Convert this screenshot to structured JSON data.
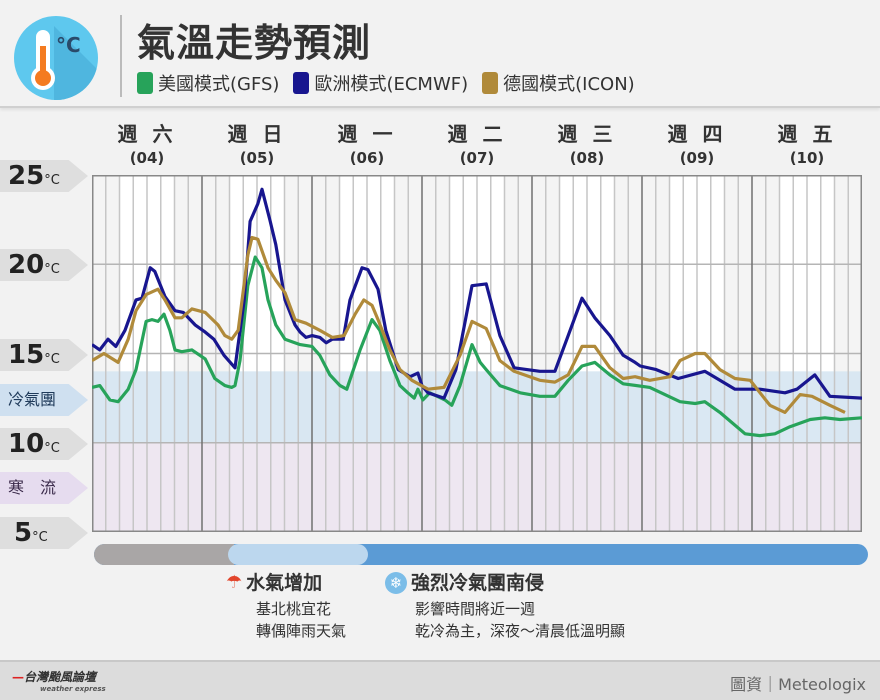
{
  "header": {
    "title": "氣溫走勢預測",
    "icon": "thermometer-celsius-icon"
  },
  "chart_data": {
    "type": "line",
    "title": "氣溫走勢預測",
    "xlabel": "",
    "ylabel": "°C",
    "xlim": [
      0,
      168
    ],
    "ylim": [
      5,
      25
    ],
    "grid": true,
    "legend_position": "top",
    "day_labels": [
      {
        "w": "週 六",
        "d": "(04)"
      },
      {
        "w": "週 日",
        "d": "(05)"
      },
      {
        "w": "週 一",
        "d": "(06)"
      },
      {
        "w": "週 二",
        "d": "(07)"
      },
      {
        "w": "週 三",
        "d": "(08)"
      },
      {
        "w": "週 四",
        "d": "(09)"
      },
      {
        "w": "週 五",
        "d": "(10)"
      }
    ],
    "y_ticks": [
      {
        "v": 25,
        "t": "25"
      },
      {
        "v": 20,
        "t": "20"
      },
      {
        "v": 15,
        "t": "15"
      },
      {
        "v": 10,
        "t": "10"
      },
      {
        "v": 5,
        "t": "5"
      }
    ],
    "unit": "°C",
    "bands": [
      {
        "name": "冷氣團",
        "from": 10,
        "to": 14,
        "color": "#d4e4f1"
      },
      {
        "name": "寒　流",
        "from": 5,
        "to": 10,
        "color": "#ebe3ef"
      }
    ],
    "series": [
      {
        "name": "美國模式(GFS)",
        "color": "#27a35a",
        "points": [
          [
            0,
            13.1
          ],
          [
            1.7,
            13.2
          ],
          [
            3.9,
            12.4
          ],
          [
            5.7,
            12.3
          ],
          [
            7.9,
            13
          ],
          [
            9.6,
            14.1
          ],
          [
            11.8,
            16.8
          ],
          [
            13.1,
            16.9
          ],
          [
            14.4,
            16.8
          ],
          [
            15.7,
            17.2
          ],
          [
            17,
            16.3
          ],
          [
            18.1,
            15.2
          ],
          [
            19.6,
            15.1
          ],
          [
            21.8,
            15.2
          ],
          [
            24.7,
            14.7
          ],
          [
            26.8,
            13.6
          ],
          [
            29,
            13.2
          ],
          [
            30.5,
            13.1
          ],
          [
            31.2,
            13.2
          ],
          [
            32.3,
            14.6
          ],
          [
            34,
            18.8
          ],
          [
            35.6,
            20.4
          ],
          [
            37.1,
            19.8
          ],
          [
            38.4,
            18
          ],
          [
            40.1,
            16.6
          ],
          [
            42.1,
            15.8
          ],
          [
            45.4,
            15.5
          ],
          [
            48,
            15.4
          ],
          [
            49.7,
            14.9
          ],
          [
            51.9,
            13.8
          ],
          [
            54.1,
            13.2
          ],
          [
            55.6,
            13
          ],
          [
            58.5,
            15.2
          ],
          [
            61.1,
            16.9
          ],
          [
            62.8,
            16.3
          ],
          [
            65,
            14.6
          ],
          [
            67.2,
            13.2
          ],
          [
            68.9,
            12.8
          ],
          [
            70.3,
            12.5
          ],
          [
            71.1,
            13
          ],
          [
            72.2,
            12.4
          ],
          [
            73.7,
            12.8
          ],
          [
            77,
            12.4
          ],
          [
            78.5,
            12.1
          ],
          [
            80.3,
            13.2
          ],
          [
            82.9,
            15.5
          ],
          [
            84.7,
            14.5
          ],
          [
            86,
            14.1
          ],
          [
            89,
            13.2
          ],
          [
            93.4,
            12.8
          ],
          [
            97.7,
            12.6
          ],
          [
            101,
            12.6
          ],
          [
            103.9,
            13.5
          ],
          [
            106.9,
            14.3
          ],
          [
            109.7,
            14.5
          ],
          [
            113,
            13.8
          ],
          [
            115.9,
            13.3
          ],
          [
            121.7,
            13.1
          ],
          [
            128.3,
            12.3
          ],
          [
            131.6,
            12.2
          ],
          [
            133.7,
            12.3
          ],
          [
            137,
            11.7
          ],
          [
            142.5,
            10.5
          ],
          [
            145.7,
            10.4
          ],
          [
            149,
            10.5
          ],
          [
            152.3,
            10.9
          ],
          [
            156.7,
            11.3
          ],
          [
            159.9,
            11.4
          ],
          [
            163.2,
            11.3
          ],
          [
            168,
            11.4
          ]
        ]
      },
      {
        "name": "歐洲模式(ECMWF)",
        "color": "#18168f",
        "points": [
          [
            0,
            15.5
          ],
          [
            1.7,
            15.2
          ],
          [
            3.5,
            15.8
          ],
          [
            5.2,
            15.4
          ],
          [
            7.2,
            16.3
          ],
          [
            9.6,
            18
          ],
          [
            10.9,
            18.1
          ],
          [
            12.7,
            19.8
          ],
          [
            13.7,
            19.6
          ],
          [
            15.9,
            18.2
          ],
          [
            18.1,
            17.4
          ],
          [
            19.9,
            17.3
          ],
          [
            22.5,
            16.6
          ],
          [
            24.7,
            16.2
          ],
          [
            26.6,
            15.8
          ],
          [
            28.8,
            14.9
          ],
          [
            31.2,
            14.2
          ],
          [
            33.2,
            18
          ],
          [
            34.5,
            22.4
          ],
          [
            36.2,
            23.4
          ],
          [
            37.1,
            24.2
          ],
          [
            38.8,
            22.5
          ],
          [
            40.1,
            21.1
          ],
          [
            42.1,
            18
          ],
          [
            44.3,
            16.6
          ],
          [
            45.4,
            16.2
          ],
          [
            46.7,
            15.9
          ],
          [
            48,
            16
          ],
          [
            49.7,
            15.9
          ],
          [
            51.1,
            15.6
          ],
          [
            52.4,
            15.8
          ],
          [
            54.8,
            15.8
          ],
          [
            56.3,
            18
          ],
          [
            58.9,
            19.8
          ],
          [
            60.2,
            19.7
          ],
          [
            62.4,
            18.6
          ],
          [
            64.1,
            16.3
          ],
          [
            66.8,
            14.1
          ],
          [
            69.4,
            13.7
          ],
          [
            71.1,
            13.9
          ],
          [
            72,
            13.2
          ],
          [
            73.3,
            12.8
          ],
          [
            76.8,
            12.5
          ],
          [
            79.4,
            14.1
          ],
          [
            82.9,
            18.8
          ],
          [
            86,
            18.9
          ],
          [
            89,
            16
          ],
          [
            92.1,
            14.2
          ],
          [
            97.7,
            14
          ],
          [
            101,
            14
          ],
          [
            103.9,
            16
          ],
          [
            106.9,
            18.1
          ],
          [
            109.7,
            17
          ],
          [
            113,
            16
          ],
          [
            115.9,
            14.9
          ],
          [
            118.5,
            14.5
          ],
          [
            119.6,
            14.3
          ],
          [
            123.1,
            14.1
          ],
          [
            127.9,
            13.6
          ],
          [
            133.7,
            14
          ],
          [
            140.3,
            13
          ],
          [
            145.7,
            13
          ],
          [
            151.2,
            12.8
          ],
          [
            153.8,
            13
          ],
          [
            157.7,
            13.8
          ],
          [
            161,
            12.6
          ],
          [
            168,
            12.5
          ]
        ]
      },
      {
        "name": "德國模式(ICON)",
        "color": "#b08a3a",
        "points": [
          [
            0,
            14.6
          ],
          [
            2.6,
            15
          ],
          [
            5.7,
            14.5
          ],
          [
            7.9,
            15.8
          ],
          [
            9.6,
            17.4
          ],
          [
            11.8,
            18.3
          ],
          [
            14.4,
            18.6
          ],
          [
            15.9,
            18
          ],
          [
            18.1,
            17
          ],
          [
            19.6,
            17
          ],
          [
            21.8,
            17.5
          ],
          [
            24.7,
            17.3
          ],
          [
            27.5,
            16.6
          ],
          [
            29,
            16
          ],
          [
            30.5,
            15.8
          ],
          [
            31.9,
            16.3
          ],
          [
            34,
            20.5
          ],
          [
            34.9,
            21.5
          ],
          [
            36.2,
            21.4
          ],
          [
            38.4,
            19.8
          ],
          [
            40.1,
            19.1
          ],
          [
            42.1,
            18.4
          ],
          [
            44.3,
            16.9
          ],
          [
            46.7,
            16.7
          ],
          [
            49.7,
            16.3
          ],
          [
            52.4,
            15.9
          ],
          [
            55,
            16
          ],
          [
            57.4,
            17.2
          ],
          [
            59.3,
            18
          ],
          [
            61.1,
            17.7
          ],
          [
            62.4,
            16.9
          ],
          [
            65,
            15.2
          ],
          [
            67.2,
            14.1
          ],
          [
            69.8,
            13.5
          ],
          [
            73.3,
            13
          ],
          [
            76.8,
            13.1
          ],
          [
            80.3,
            14.9
          ],
          [
            82.9,
            16.8
          ],
          [
            86,
            16.4
          ],
          [
            89,
            14.6
          ],
          [
            92.1,
            14
          ],
          [
            97.7,
            13.5
          ],
          [
            101,
            13.4
          ],
          [
            103.9,
            13.8
          ],
          [
            106.9,
            15.4
          ],
          [
            109.7,
            15.4
          ],
          [
            113,
            14.2
          ],
          [
            115.9,
            13.6
          ],
          [
            118.5,
            13.7
          ],
          [
            121.7,
            13.5
          ],
          [
            126.1,
            13.7
          ],
          [
            128.3,
            14.6
          ],
          [
            131.6,
            15
          ],
          [
            133.7,
            15
          ],
          [
            137,
            14.1
          ],
          [
            140.3,
            13.6
          ],
          [
            143.6,
            13.5
          ],
          [
            147.9,
            12.1
          ],
          [
            151.2,
            11.7
          ],
          [
            154.5,
            12.7
          ],
          [
            157.1,
            12.6
          ],
          [
            161,
            12.1
          ],
          [
            164.3,
            11.7
          ]
        ]
      }
    ]
  },
  "timeline": {
    "note1": {
      "title": "水氣增加",
      "icon": "rain-umbrella-icon",
      "line1": "基北桃宜花",
      "line2": "轉偶陣雨天氣"
    },
    "note2": {
      "title": "強烈冷氣團南侵",
      "icon": "snowflake-icon",
      "line1": "影響時間將近一週",
      "line2": "乾冷為主，深夜～清晨低溫明顯"
    }
  },
  "footer": {
    "brand": "台灣颱風論壇",
    "brand_sub": "weather express",
    "credit": "圖資｜Meteologix"
  }
}
